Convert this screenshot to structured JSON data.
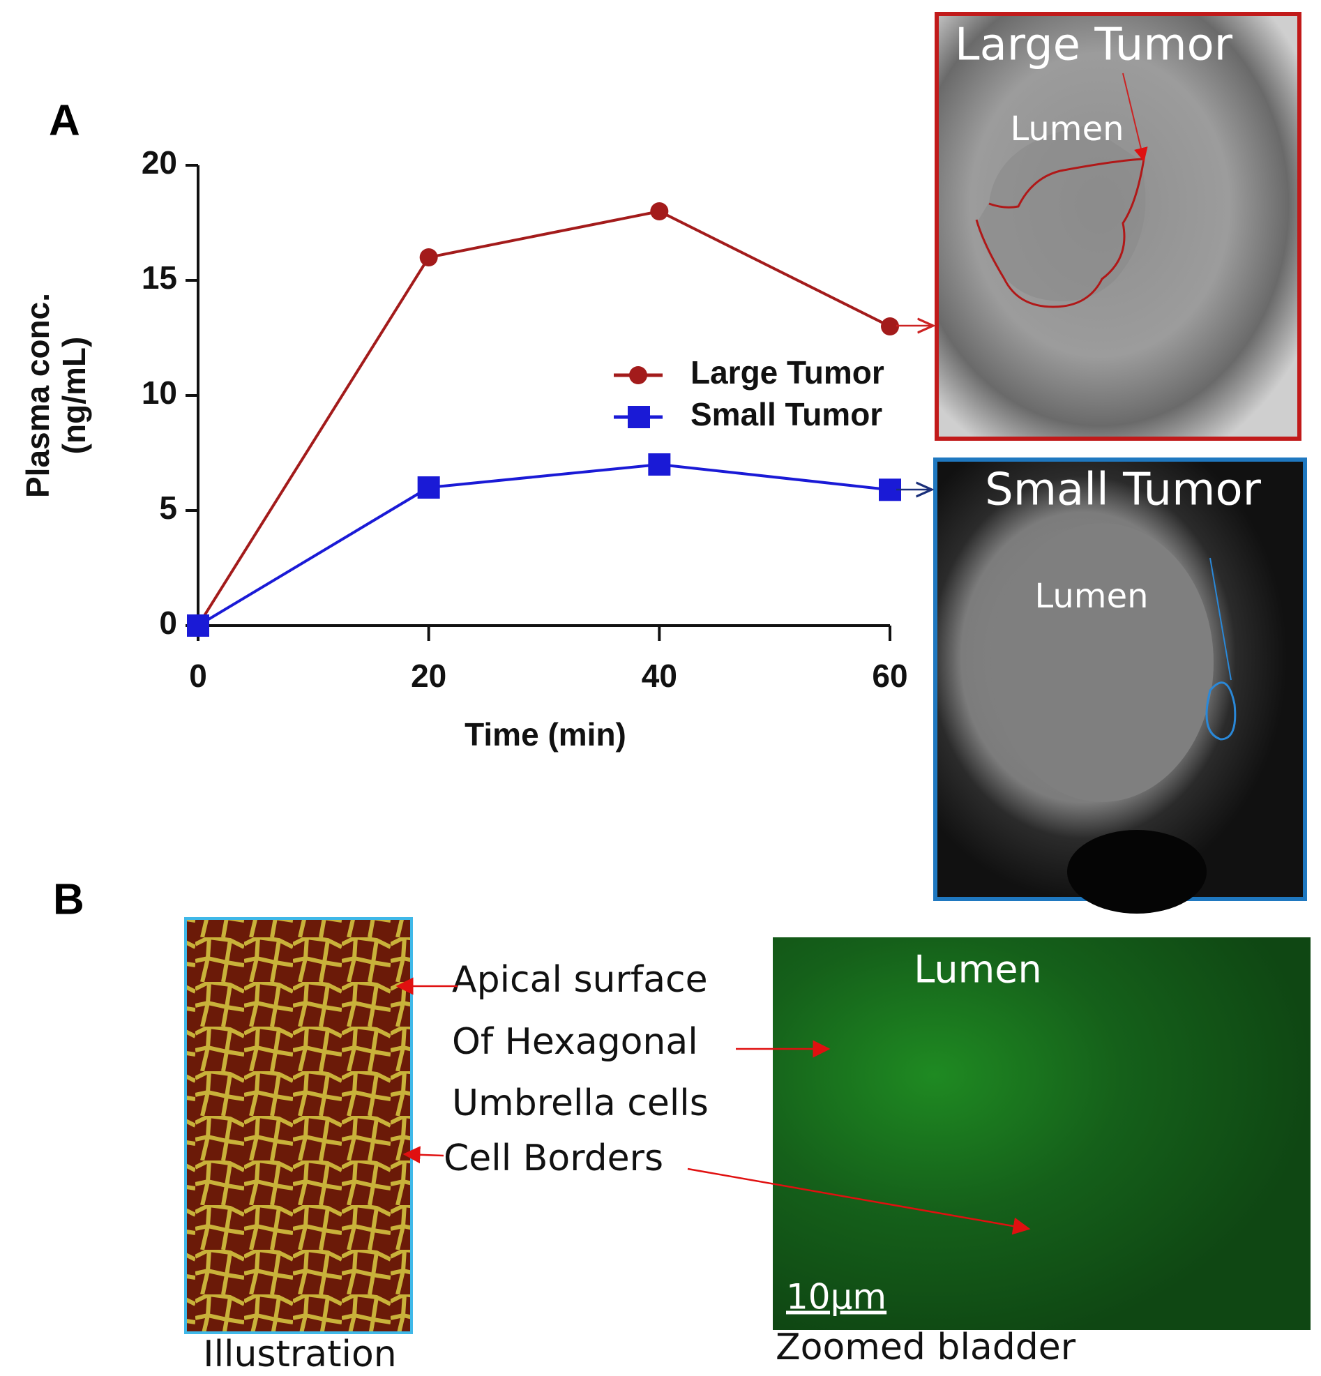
{
  "panels": {
    "a": "A",
    "b": "B"
  },
  "chart_data": {
    "type": "line",
    "ylabel": [
      "Plasma conc.",
      "(ng/mL)"
    ],
    "xlabel": "Time (min)",
    "x": [
      0,
      20,
      40,
      60
    ],
    "series": [
      {
        "name": "Large Tumor",
        "color": "#a31b1b",
        "marker": "circle",
        "values": [
          0,
          16,
          18,
          13
        ]
      },
      {
        "name": "Small Tumor",
        "color": "#1a1ad6",
        "marker": "square",
        "values": [
          0,
          6,
          7,
          5.9
        ]
      }
    ],
    "xlim": [
      0,
      60
    ],
    "xticks": [
      0,
      20,
      40,
      60
    ],
    "ylim": [
      0,
      20
    ],
    "yticks": [
      0,
      5,
      10,
      15,
      20
    ],
    "legend": "right"
  },
  "images": {
    "large": {
      "title": "Large Tumor",
      "lumen": "Lumen"
    },
    "small": {
      "title": "Small Tumor",
      "lumen": "Lumen"
    }
  },
  "panel_b": {
    "annotations": [
      "Apical surface",
      "Of  Hexagonal",
      "Umbrella cells",
      "Cell Borders"
    ],
    "lumen": "Lumen",
    "scale_bar": "10µm",
    "captions": [
      "Illustration",
      "Zoomed bladder"
    ]
  }
}
